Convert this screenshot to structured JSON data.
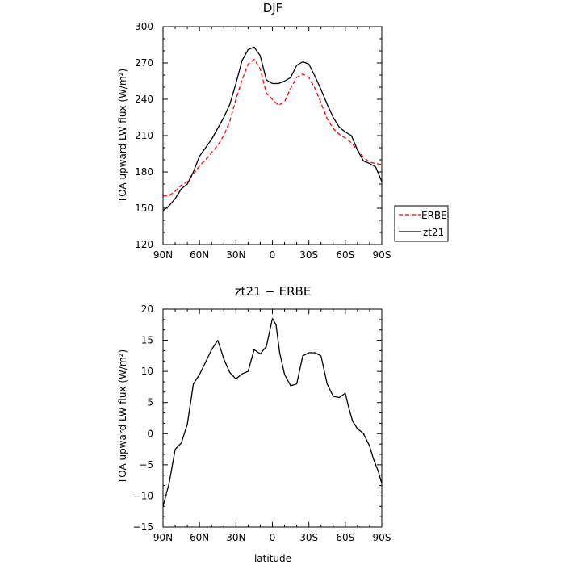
{
  "chart_data": [
    {
      "type": "line",
      "title": "DJF",
      "xlabel": "",
      "ylabel": "TOA upward LW flux (W/m²)",
      "xlim": [
        90,
        -90
      ],
      "ylim": [
        120,
        300
      ],
      "xticks": [
        "90N",
        "60N",
        "30N",
        "0",
        "30S",
        "60S",
        "90S"
      ],
      "yticks": [
        "120",
        "150",
        "180",
        "210",
        "240",
        "270",
        "300"
      ],
      "legend_position": "right",
      "x": [
        90,
        85,
        80,
        75,
        70,
        65,
        60,
        55,
        50,
        45,
        40,
        35,
        30,
        25,
        20,
        15,
        10,
        5,
        0,
        -5,
        -10,
        -15,
        -20,
        -25,
        -30,
        -35,
        -40,
        -45,
        -50,
        -55,
        -60,
        -65,
        -70,
        -75,
        -80,
        -85,
        -90
      ],
      "series": [
        {
          "name": "ERBE",
          "color": "#ff0000",
          "dash": "dashed",
          "values": [
            160,
            160.5,
            164,
            169,
            172,
            178,
            185,
            190,
            196,
            202,
            210,
            222,
            240,
            256,
            269,
            273,
            265,
            245,
            240,
            235,
            238,
            249,
            258,
            261,
            258,
            249,
            237,
            224,
            216,
            211,
            208,
            204,
            198,
            192,
            188,
            187,
            186
          ]
        },
        {
          "name": "zt21",
          "color": "#000000",
          "dash": "solid",
          "values": [
            148,
            152,
            158,
            166,
            170,
            180,
            193,
            200,
            207,
            216,
            225,
            236,
            253,
            272,
            281,
            283,
            276,
            256,
            253,
            253,
            255,
            258,
            268,
            271,
            269,
            259,
            248,
            236,
            225,
            217,
            213,
            210,
            198,
            189,
            187,
            184,
            172
          ]
        }
      ]
    },
    {
      "type": "line",
      "title": "zt21 − ERBE",
      "xlabel": "latitude",
      "ylabel": "TOA upward LW flux (W/m²)",
      "xlim": [
        90,
        -90
      ],
      "ylim": [
        -15,
        20
      ],
      "xticks": [
        "90N",
        "60N",
        "30N",
        "0",
        "30S",
        "60S",
        "90S"
      ],
      "yticks": [
        "−15",
        "−10",
        "−5",
        "0",
        "5",
        "10",
        "15",
        "20"
      ],
      "x": [
        90,
        85,
        80,
        75,
        70,
        65,
        60,
        55,
        50,
        45,
        40,
        35,
        30,
        25,
        20,
        15,
        10,
        5,
        0,
        -3,
        -6,
        -10,
        -15,
        -20,
        -25,
        -30,
        -35,
        -40,
        -45,
        -50,
        -55,
        -60,
        -63,
        -66,
        -70,
        -75,
        -80,
        -83,
        -87,
        -90
      ],
      "series": [
        {
          "name": "zt21 − ERBE",
          "color": "#000000",
          "dash": "solid",
          "values": [
            -11.7,
            -8,
            -2.5,
            -1.5,
            1.5,
            8,
            9.5,
            11.5,
            13.5,
            15,
            12,
            9.8,
            8.8,
            9.6,
            10,
            13.5,
            12.8,
            14,
            18.5,
            17.5,
            13,
            9.5,
            7.7,
            8,
            12.5,
            13,
            13,
            12.5,
            8,
            6,
            5.8,
            6.5,
            4,
            2,
            0.8,
            0,
            -2,
            -4,
            -6,
            -8
          ]
        }
      ]
    }
  ]
}
